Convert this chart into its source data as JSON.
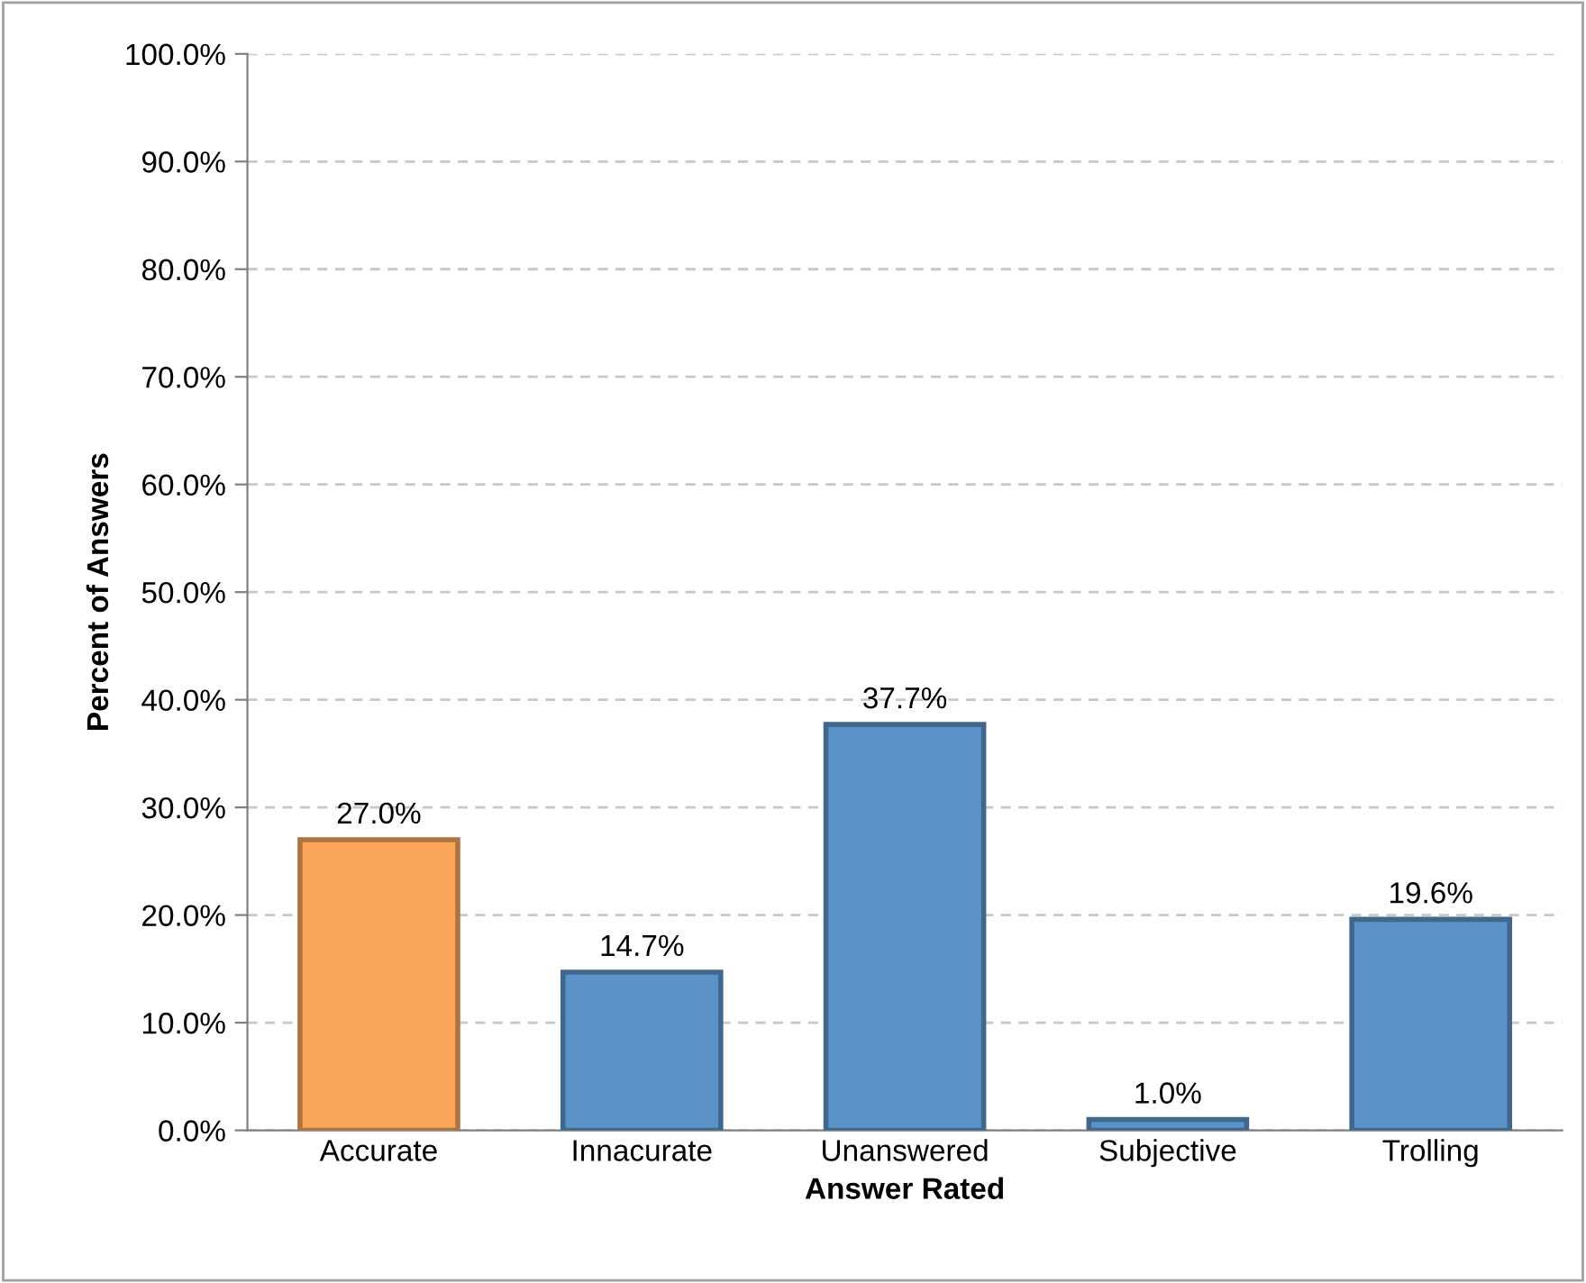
{
  "chart_data": {
    "type": "bar",
    "xlabel": "Answer Rated",
    "ylabel": "Percent of Answers",
    "categories": [
      "Accurate",
      "Innacurate",
      "Unanswered",
      "Subjective",
      "Trolling"
    ],
    "values": [
      27.0,
      14.7,
      37.7,
      1.0,
      19.6
    ],
    "value_labels": [
      "27.0%",
      "14.7%",
      "37.7%",
      "1.0%",
      "19.6%"
    ],
    "colors": [
      "#f9a65a",
      "#5b93c8",
      "#5b93c8",
      "#5b93c8",
      "#5b93c8"
    ],
    "ylim": [
      0,
      100
    ],
    "yticks": [
      {
        "value": 0,
        "label": "0.0%"
      },
      {
        "value": 10,
        "label": "10.0%"
      },
      {
        "value": 20,
        "label": "20.0%"
      },
      {
        "value": 30,
        "label": "30.0%"
      },
      {
        "value": 40,
        "label": "40.0%"
      },
      {
        "value": 50,
        "label": "50.0%"
      },
      {
        "value": 60,
        "label": "60.0%"
      },
      {
        "value": 70,
        "label": "70.0%"
      },
      {
        "value": 80,
        "label": "80.0%"
      },
      {
        "value": 90,
        "label": "90.0%"
      },
      {
        "value": 100,
        "label": "100.0%"
      }
    ],
    "grid": "y",
    "line_style": "dashed"
  }
}
